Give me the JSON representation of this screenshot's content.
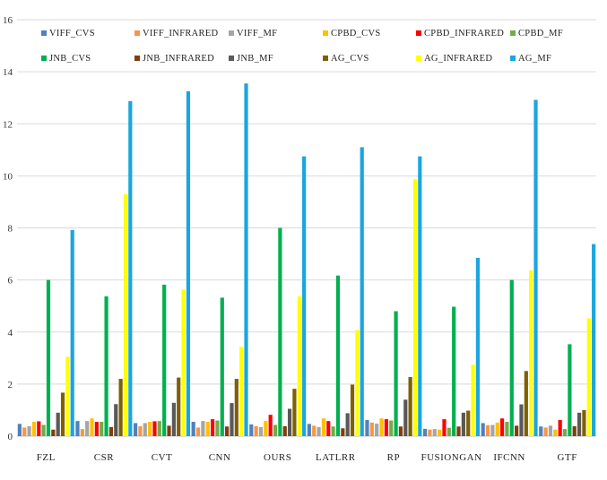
{
  "chart_data": {
    "type": "bar",
    "title": "",
    "xlabel": "",
    "ylabel": "",
    "ylim": [
      0,
      16
    ],
    "yticks": [
      0,
      2,
      4,
      6,
      8,
      10,
      12,
      14,
      16
    ],
    "grid": true,
    "legend_position": "top",
    "categories": [
      "FZL",
      "CSR",
      "CVT",
      "CNN",
      "OURS",
      "LATLRR",
      "RP",
      "FUSIONGAN",
      "IFCNN",
      "GTF"
    ],
    "series": [
      {
        "name": "VIFF_CVS",
        "color": "#4F81BD",
        "values": [
          0.47,
          0.58,
          0.5,
          0.55,
          0.45,
          0.47,
          0.62,
          0.28,
          0.5,
          0.37
        ]
      },
      {
        "name": "VIFF_INFRARED",
        "color": "#F79646",
        "values": [
          0.33,
          0.27,
          0.38,
          0.33,
          0.38,
          0.4,
          0.52,
          0.25,
          0.42,
          0.33
        ]
      },
      {
        "name": "VIFF_MF",
        "color": "#A5A5A5",
        "values": [
          0.38,
          0.58,
          0.5,
          0.58,
          0.35,
          0.35,
          0.48,
          0.27,
          0.43,
          0.4
        ]
      },
      {
        "name": "CPBD_CVS",
        "color": "#FFC000",
        "values": [
          0.55,
          0.68,
          0.55,
          0.55,
          0.58,
          0.68,
          0.68,
          0.25,
          0.52,
          0.25
        ]
      },
      {
        "name": "CPBD_INFRARED",
        "color": "#FF0000",
        "values": [
          0.57,
          0.55,
          0.57,
          0.65,
          0.82,
          0.58,
          0.65,
          0.65,
          0.68,
          0.62
        ]
      },
      {
        "name": "CPBD_MF",
        "color": "#70AD47",
        "values": [
          0.43,
          0.55,
          0.58,
          0.6,
          0.43,
          0.37,
          0.6,
          0.32,
          0.55,
          0.27
        ]
      },
      {
        "name": "JNB_CVS",
        "color": "#00B050",
        "values": [
          6.0,
          5.37,
          5.82,
          5.32,
          8.0,
          6.17,
          4.8,
          4.97,
          6.0,
          3.53
        ]
      },
      {
        "name": "JNB_INFRARED",
        "color": "#843C0C",
        "values": [
          0.25,
          0.35,
          0.4,
          0.37,
          0.38,
          0.3,
          0.37,
          0.37,
          0.4,
          0.38
        ]
      },
      {
        "name": "JNB_MF",
        "color": "#595959",
        "values": [
          0.9,
          1.23,
          1.28,
          1.27,
          1.05,
          0.88,
          1.4,
          0.9,
          1.22,
          0.9
        ]
      },
      {
        "name": "AG_CVS",
        "color": "#7F6000",
        "values": [
          1.67,
          2.2,
          2.25,
          2.2,
          1.82,
          1.98,
          2.27,
          0.98,
          2.5,
          1.0
        ]
      },
      {
        "name": "AG_INFRARED",
        "color": "#FFFF00",
        "values": [
          3.05,
          9.3,
          5.63,
          3.43,
          5.37,
          4.08,
          9.87,
          2.75,
          6.37,
          4.53
        ]
      },
      {
        "name": "AG_MF",
        "color": "#1AA6E0",
        "values": [
          7.92,
          12.87,
          13.25,
          13.55,
          10.75,
          11.1,
          10.75,
          6.85,
          12.92,
          7.38
        ]
      }
    ]
  }
}
